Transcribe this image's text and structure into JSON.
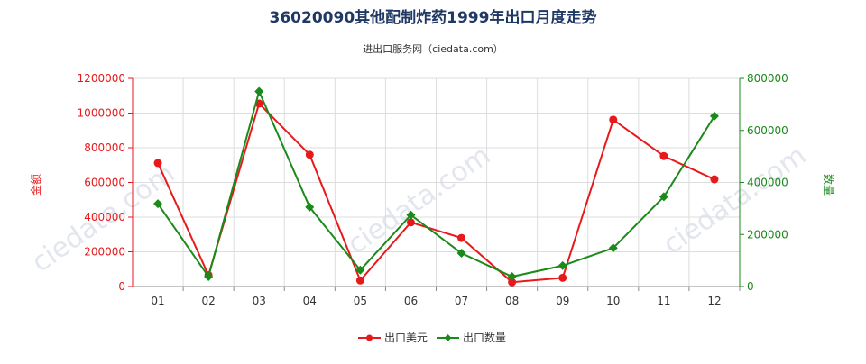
{
  "title": "36020090其他配制炸药1999年出口月度走势",
  "subtitle": "进出口服务网（ciedata.com）",
  "colors": {
    "amount": "#e8191b",
    "quantity": "#1a8a1a",
    "grid": "#dddddd",
    "axis": "#888888",
    "title": "#1f3864",
    "watermark": "#e3e6ee"
  },
  "chart_data": {
    "type": "line",
    "categories": [
      "01",
      "02",
      "03",
      "04",
      "05",
      "06",
      "07",
      "08",
      "09",
      "10",
      "11",
      "12"
    ],
    "y_left": {
      "label": "金额",
      "ylim": [
        0,
        1200000
      ],
      "ticks": [
        "0",
        "200000",
        "400000",
        "600000",
        "800000",
        "1000000",
        "1200000"
      ]
    },
    "y_right": {
      "label": "数量",
      "ylim": [
        0,
        800000
      ],
      "ticks": [
        "0",
        "200000",
        "400000",
        "600000",
        "800000"
      ]
    },
    "series": [
      {
        "name": "出口美元",
        "axis": "left",
        "marker": "circle",
        "values": [
          712000,
          65000,
          1055000,
          760000,
          35000,
          370000,
          280000,
          25000,
          50000,
          962000,
          752000,
          618000
        ]
      },
      {
        "name": "出口数量",
        "axis": "right",
        "marker": "diamond",
        "values": [
          318000,
          38000,
          750000,
          305000,
          63000,
          275000,
          128000,
          38000,
          80000,
          148000,
          345000,
          655000
        ]
      }
    ],
    "grid": true,
    "legend_position": "bottom-center"
  }
}
